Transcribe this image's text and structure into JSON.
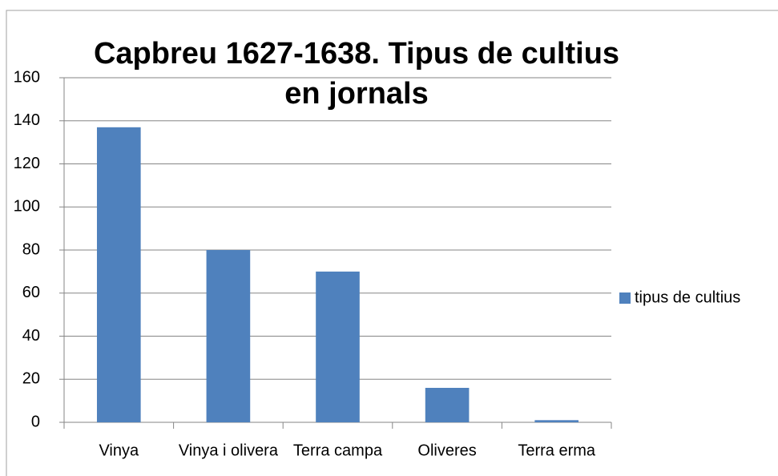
{
  "chart_data": {
    "type": "bar",
    "title": "Capbreu 1627-1638. Tipus de cultius en jornals",
    "categories": [
      "Vinya",
      "Vinya i olivera",
      "Terra campa",
      "Oliveres",
      "Terra erma"
    ],
    "series": [
      {
        "name": "tipus de cultius",
        "color": "#4f81bd",
        "values": [
          137,
          80,
          70,
          16,
          1
        ]
      }
    ],
    "ylim": [
      0,
      160
    ],
    "yticks": [
      0,
      20,
      40,
      60,
      80,
      100,
      120,
      140,
      160
    ],
    "grid": true,
    "legend": "right"
  }
}
